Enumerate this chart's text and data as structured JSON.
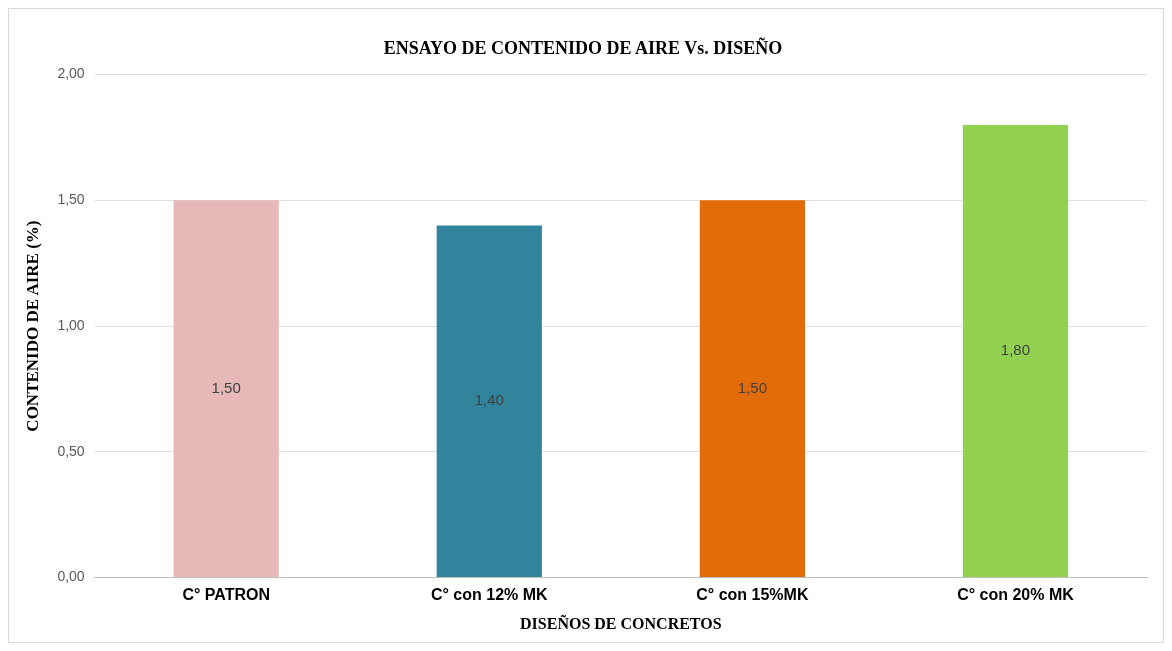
{
  "chart_data": {
    "type": "bar",
    "title": "ENSAYO DE CONTENIDO DE AIRE Vs. DISEÑO",
    "xlabel": "DISEÑOS DE CONCRETOS",
    "ylabel": "CONTENIDO DE AIRE (%)",
    "categories": [
      "C° PATRON",
      "C° con 12% MK",
      "C° con 15%MK",
      "C° con 20% MK"
    ],
    "values": [
      1.5,
      1.4,
      1.5,
      1.8
    ],
    "colors": [
      "#e6b8b7",
      "#31849b",
      "#e36c0a",
      "#92d050"
    ],
    "value_labels": [
      "1,50",
      "1,40",
      "1,50",
      "1,80"
    ],
    "ylim": [
      0,
      2
    ],
    "yticks": [
      {
        "value": 0,
        "label": "0,00"
      },
      {
        "value": 0.5,
        "label": "0,50"
      },
      {
        "value": 1,
        "label": "1,00"
      },
      {
        "value": 1.5,
        "label": "1,50"
      },
      {
        "value": 2,
        "label": "2,00"
      }
    ],
    "grid": "y",
    "legend": false
  }
}
